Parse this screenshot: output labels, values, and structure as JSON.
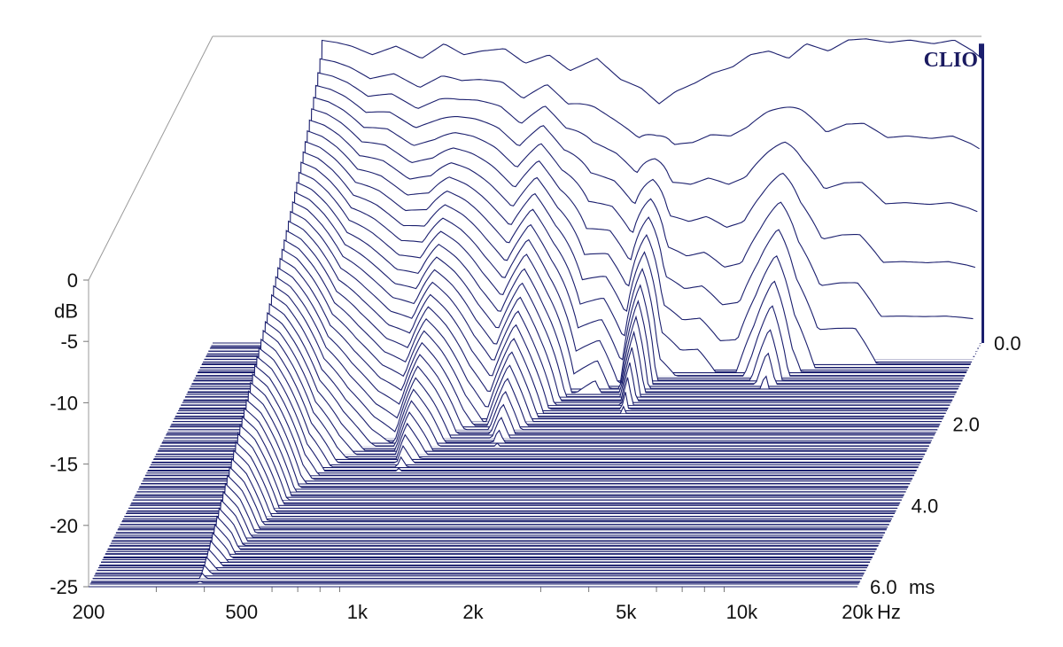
{
  "chart_data": {
    "type": "waterfall",
    "brand": "CLIO",
    "z_axis_label": "dB",
    "x_unit": "Hz",
    "t_unit": "ms",
    "z_range_db": [
      -25,
      0
    ],
    "x_range_hz": [
      200,
      20000
    ],
    "x_scale": "log",
    "t_range_ms": [
      0,
      6
    ],
    "z_ticks": [
      "0",
      "-5",
      "-10",
      "-15",
      "-20",
      "-25"
    ],
    "x_ticks": [
      {
        "label": "200",
        "hz": 200
      },
      {
        "label": "500",
        "hz": 500
      },
      {
        "label": "1k",
        "hz": 1000
      },
      {
        "label": "2k",
        "hz": 2000
      },
      {
        "label": "5k",
        "hz": 5000
      },
      {
        "label": "10k",
        "hz": 10000
      },
      {
        "label": "20k",
        "hz": 20000
      }
    ],
    "t_ticks": [
      {
        "label": "0.0",
        "ms": 0
      },
      {
        "label": "2.0",
        "ms": 2
      },
      {
        "label": "4.0",
        "ms": 4
      },
      {
        "label": "6.0",
        "ms": 6
      }
    ],
    "slice_count": 60,
    "noise_floor_db": -25,
    "initial_response": {
      "hz": [
        380,
        420,
        460,
        520,
        600,
        700,
        800,
        900,
        1000,
        1150,
        1300,
        1500,
        1700,
        2000,
        2300,
        2600,
        2900,
        3200,
        3600,
        4000,
        4500,
        5000,
        5600,
        6300,
        7000,
        8000,
        9000,
        10000,
        11500,
        13000,
        15000,
        17000,
        19000,
        20000
      ],
      "db": [
        -0.3,
        -0.5,
        -0.8,
        -1.5,
        -0.8,
        -1.8,
        -0.6,
        -1.5,
        -1.2,
        -1.0,
        -2.2,
        -1.5,
        -2.8,
        -1.8,
        -3.5,
        -4.2,
        -5.5,
        -4.5,
        -3.8,
        -3.0,
        -2.5,
        -1.5,
        -1.2,
        -1.8,
        -0.6,
        -1.2,
        -0.3,
        -0.2,
        -0.5,
        -0.3,
        -0.6,
        -0.3,
        -1.2,
        -1.8
      ]
    },
    "decay_ms": {
      "hz": [
        380,
        420,
        460,
        520,
        600,
        700,
        800,
        900,
        1000,
        1150,
        1300,
        1500,
        1700,
        2000,
        2300,
        2600,
        2900,
        3200,
        3600,
        4000,
        4500,
        5000,
        5600,
        6300,
        7000,
        8000,
        9000,
        10000,
        11500,
        13000,
        15000,
        17000,
        19000,
        20000
      ],
      "ms": [
        6.0,
        5.5,
        4.7,
        3.6,
        3.0,
        2.6,
        2.4,
        3.2,
        2.8,
        2.2,
        1.9,
        2.6,
        2.0,
        1.2,
        1.3,
        1.0,
        1.8,
        0.9,
        0.8,
        0.8,
        0.7,
        0.7,
        0.9,
        1.2,
        0.8,
        0.6,
        0.6,
        0.6,
        0.5,
        0.5,
        0.5,
        0.5,
        0.5,
        0.5
      ]
    }
  }
}
